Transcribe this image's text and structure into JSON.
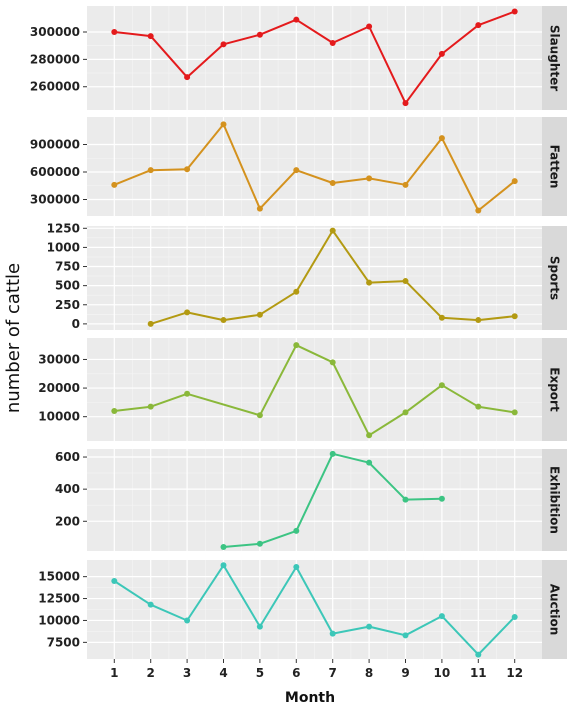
{
  "chart_data": {
    "type": "line",
    "xlabel": "Month",
    "ylabel": "number of cattle",
    "x_ticks": [
      1,
      2,
      3,
      4,
      5,
      6,
      7,
      8,
      9,
      10,
      11,
      12
    ],
    "xlim": [
      0.25,
      12.75
    ],
    "grid": true,
    "legend": "none",
    "panels": [
      {
        "name": "Slaughter",
        "color": "#e41a1c",
        "x": [
          1,
          2,
          3,
          4,
          5,
          6,
          7,
          8,
          9,
          10,
          11,
          12
        ],
        "values": [
          300000,
          297000,
          267000,
          291000,
          298000,
          309000,
          292000,
          304000,
          248000,
          284000,
          305000,
          315000
        ],
        "ylim": [
          243000,
          319000
        ],
        "yticks": [
          260000,
          280000,
          300000
        ],
        "ytick_labels": [
          "260000",
          "280000",
          "300000"
        ]
      },
      {
        "name": "Fatten",
        "color": "#d4921e",
        "x": [
          1,
          2,
          3,
          4,
          5,
          6,
          7,
          8,
          9,
          10,
          11,
          12
        ],
        "values": [
          460000,
          620000,
          630000,
          1120000,
          200000,
          620000,
          480000,
          530000,
          460000,
          970000,
          180000,
          500000
        ],
        "ylim": [
          120000,
          1200000
        ],
        "yticks": [
          300000,
          600000,
          900000
        ],
        "ytick_labels": [
          "300000",
          "600000",
          "900000"
        ]
      },
      {
        "name": "Sports",
        "color": "#b39a12",
        "x": [
          2,
          3,
          4,
          5,
          6,
          7,
          8,
          9,
          10,
          11,
          12
        ],
        "values": [
          0,
          150,
          50,
          120,
          420,
          1220,
          540,
          560,
          80,
          50,
          100
        ],
        "ylim": [
          -80,
          1280
        ],
        "yticks": [
          0,
          250,
          500,
          750,
          1000,
          1250
        ],
        "ytick_labels": [
          "0",
          "250",
          "500",
          "750",
          "1000",
          "1250"
        ]
      },
      {
        "name": "Export",
        "color": "#8ab83a",
        "x": [
          1,
          2,
          3,
          5,
          6,
          7,
          8,
          9,
          10,
          11,
          12
        ],
        "values": [
          12000,
          13500,
          18000,
          10500,
          35000,
          29000,
          3500,
          11500,
          21000,
          13500,
          11500
        ],
        "ylim": [
          1500,
          37500
        ],
        "yticks": [
          10000,
          20000,
          30000
        ],
        "ytick_labels": [
          "10000",
          "20000",
          "30000"
        ]
      },
      {
        "name": "Exhibition",
        "color": "#3cc483",
        "x": [
          4,
          5,
          6,
          7,
          8,
          9,
          10
        ],
        "values": [
          40,
          60,
          140,
          620,
          565,
          335,
          340
        ],
        "ylim": [
          15,
          650
        ],
        "yticks": [
          200,
          400,
          600
        ],
        "ytick_labels": [
          "200",
          "400",
          "600"
        ]
      },
      {
        "name": "Auction",
        "color": "#3cc7b8",
        "x": [
          1,
          2,
          3,
          4,
          5,
          6,
          7,
          8,
          9,
          10,
          11,
          12
        ],
        "values": [
          14500,
          11800,
          10000,
          16300,
          9300,
          16100,
          8500,
          9300,
          8300,
          10500,
          6100,
          10400
        ],
        "ylim": [
          5600,
          16900
        ],
        "yticks": [
          7500,
          10000,
          12500,
          15000
        ],
        "ytick_labels": [
          "7500",
          "10000",
          "12500",
          "15000"
        ]
      }
    ]
  }
}
